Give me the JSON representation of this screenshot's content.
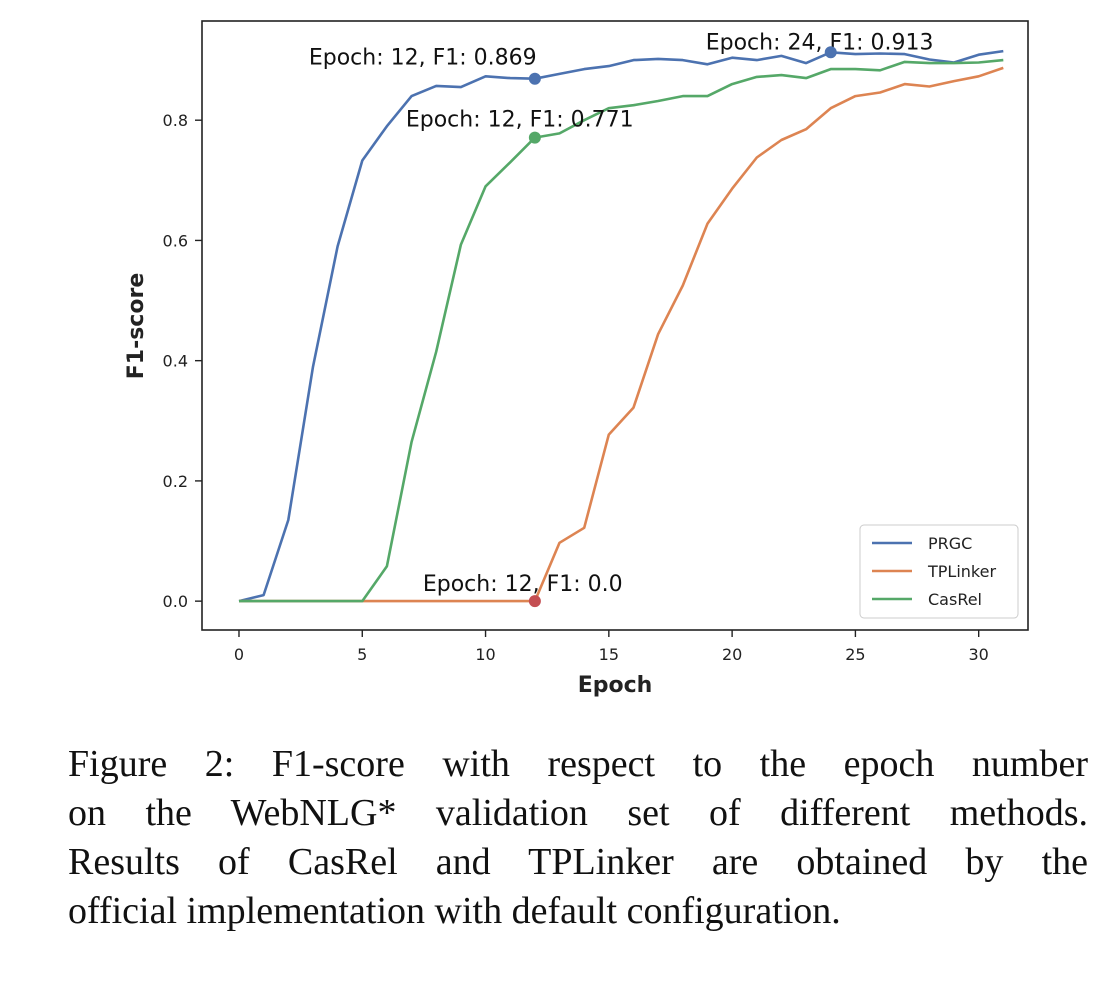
{
  "chart_data": {
    "type": "line",
    "xlabel": "Epoch",
    "ylabel": "F1-score",
    "xlim": [
      -1.5,
      32.0
    ],
    "ylim": [
      -0.048,
      0.965
    ],
    "xticks": [
      0,
      5,
      10,
      15,
      20,
      25,
      30
    ],
    "xtick_labels": [
      "0",
      "5",
      "10",
      "15",
      "20",
      "25",
      "30"
    ],
    "yticks": [
      0.0,
      0.2,
      0.4,
      0.6,
      0.8
    ],
    "ytick_labels": [
      "0.0",
      "0.2",
      "0.4",
      "0.6",
      "0.8"
    ],
    "grid": false,
    "legend_position": "lower-right",
    "x": [
      0,
      1,
      2,
      3,
      4,
      5,
      6,
      7,
      8,
      9,
      10,
      11,
      12,
      13,
      14,
      15,
      16,
      17,
      18,
      19,
      20,
      21,
      22,
      23,
      24,
      25,
      26,
      27,
      28,
      29,
      30,
      31
    ],
    "series": [
      {
        "name": "PRGC",
        "color": "#4c72b0",
        "values": [
          0.0,
          0.01,
          0.135,
          0.39,
          0.59,
          0.733,
          0.79,
          0.84,
          0.857,
          0.855,
          0.873,
          0.87,
          0.869,
          0.877,
          0.885,
          0.89,
          0.9,
          0.902,
          0.9,
          0.893,
          0.904,
          0.9,
          0.907,
          0.895,
          0.913,
          0.91,
          0.911,
          0.91,
          0.901,
          0.896,
          0.909,
          0.915
        ]
      },
      {
        "name": "TPLinker",
        "color": "#dd8452",
        "values": [
          0.0,
          0.0,
          0.0,
          0.0,
          0.0,
          0.0,
          0.0,
          0.0,
          0.0,
          0.0,
          0.0,
          0.0,
          0.0,
          0.097,
          0.122,
          0.277,
          0.322,
          0.444,
          0.525,
          0.628,
          0.686,
          0.738,
          0.767,
          0.785,
          0.82,
          0.84,
          0.846,
          0.86,
          0.856,
          0.865,
          0.873,
          0.887
        ]
      },
      {
        "name": "CasRel",
        "color": "#55a868",
        "values": [
          0.0,
          0.0,
          0.0,
          0.0,
          0.0,
          0.0,
          0.058,
          0.265,
          0.415,
          0.593,
          0.69,
          0.73,
          0.771,
          0.778,
          0.8,
          0.82,
          0.825,
          0.832,
          0.84,
          0.84,
          0.86,
          0.872,
          0.875,
          0.87,
          0.885,
          0.885,
          0.883,
          0.897,
          0.895,
          0.895,
          0.896,
          0.9
        ]
      }
    ],
    "annotations": [
      {
        "text": "Epoch: 12, F1: 0.869",
        "x": 12,
        "y": 0.869,
        "color": "#4c72b0"
      },
      {
        "text": "Epoch: 24, F1: 0.913",
        "x": 24,
        "y": 0.913,
        "color": "#4c72b0"
      },
      {
        "text": "Epoch: 12, F1: 0.771",
        "x": 12,
        "y": 0.771,
        "color": "#55a868"
      },
      {
        "text": "Epoch: 12, F1: 0.0",
        "x": 12,
        "y": 0.0,
        "color": "#c44e52"
      }
    ]
  },
  "caption": {
    "line1": "Figure 2:  F1-score with respect to the epoch number",
    "line2": "on the WebNLG* validation set of different methods.",
    "line3": "Results of CasRel and TPLinker are obtained by the",
    "line4": "official implementation with default configuration."
  }
}
